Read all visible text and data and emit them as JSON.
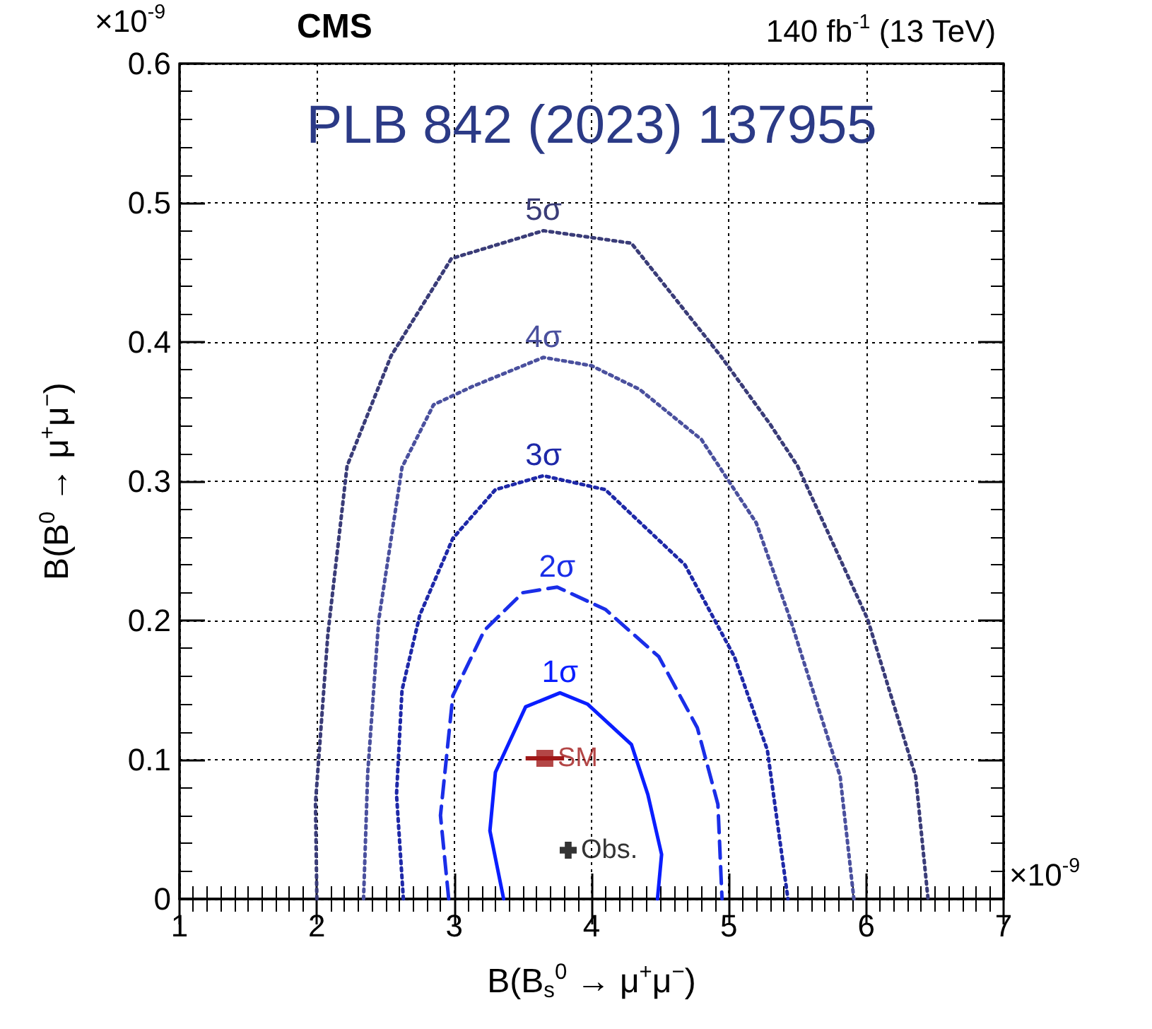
{
  "chart_data": {
    "type": "line",
    "title": "CMS",
    "subtitle": "140 fb$^{-1}$ (13 TeV)",
    "xlabel": "B(B$_{s}$$^{0}$ → μ$^{+}$μ$^{−}$)",
    "ylabel": "B(B$^{0}$ → μ$^{+}$μ$^{−}$)",
    "annotations": [
      "×10$^{-9}$",
      "×10$^{-9}$",
      "PLB 842 (2023) 137955"
    ],
    "xlim": [
      1,
      7
    ],
    "xticks": [
      1,
      2,
      3,
      4,
      5,
      6,
      7
    ],
    "ylim": [
      0,
      0.6
    ],
    "yticks": [
      0,
      0.1,
      0.2,
      0.3,
      0.4,
      0.5,
      0.6
    ],
    "grid": true,
    "legend": false,
    "marker": "none",
    "series": [
      {
        "name": "5σ",
        "color": "#3a3c78",
        "line_style": "dotted",
        "x": [
          2.0,
          1.99,
          2.08,
          2.22,
          2.54,
          2.98,
          3.65,
          4.29,
          4.94,
          5.3,
          5.5,
          6.01,
          6.36,
          6.45
        ],
        "values": [
          0,
          0.069,
          0.19,
          0.311,
          0.39,
          0.46,
          0.48,
          0.471,
          0.39,
          0.341,
          0.311,
          0.201,
          0.088,
          0
        ]
      },
      {
        "name": "4σ",
        "color": "#4a509e",
        "line_style": "dotted",
        "x": [
          2.34,
          2.37,
          2.45,
          2.62,
          2.85,
          3.13,
          3.65,
          4.0,
          4.35,
          4.8,
          5.2,
          5.45,
          5.81,
          5.91
        ],
        "values": [
          0,
          0.09,
          0.2,
          0.31,
          0.355,
          0.368,
          0.389,
          0.383,
          0.366,
          0.33,
          0.27,
          0.2,
          0.088,
          0
        ]
      },
      {
        "name": "3σ",
        "color": "#1e28a8",
        "line_style": "dotted",
        "x": [
          2.63,
          2.58,
          2.62,
          2.75,
          2.99,
          3.3,
          3.65,
          4.1,
          4.68,
          5.04,
          5.28,
          5.43
        ],
        "values": [
          0,
          0.075,
          0.15,
          0.204,
          0.259,
          0.294,
          0.304,
          0.294,
          0.24,
          0.174,
          0.107,
          0
        ]
      },
      {
        "name": "2σ",
        "color": "#1a2ee8",
        "line_style": "dashed",
        "x": [
          2.96,
          2.9,
          2.99,
          3.22,
          3.5,
          3.75,
          4.1,
          4.49,
          4.77,
          4.92,
          4.95
        ],
        "values": [
          0,
          0.06,
          0.146,
          0.193,
          0.22,
          0.224,
          0.208,
          0.174,
          0.123,
          0.068,
          0
        ]
      },
      {
        "name": "1σ",
        "color": "#0a1eff",
        "line_style": "solid",
        "x": [
          3.36,
          3.26,
          3.3,
          3.52,
          3.77,
          3.97,
          4.29,
          4.41,
          4.51,
          4.48
        ],
        "values": [
          0,
          0.049,
          0.091,
          0.138,
          0.148,
          0.14,
          0.111,
          0.075,
          0.032,
          0
        ]
      },
      {
        "name": "SM",
        "type": "scatter",
        "marker": "square",
        "color": "#a01818",
        "x": [
          3.66
        ],
        "values": [
          0.101
        ],
        "xerrors": [
          0.14
        ]
      },
      {
        "name": "Obs.",
        "type": "scatter",
        "marker": "cross",
        "color": "#000000",
        "x": [
          3.83
        ],
        "values": [
          0.035
        ]
      }
    ]
  }
}
